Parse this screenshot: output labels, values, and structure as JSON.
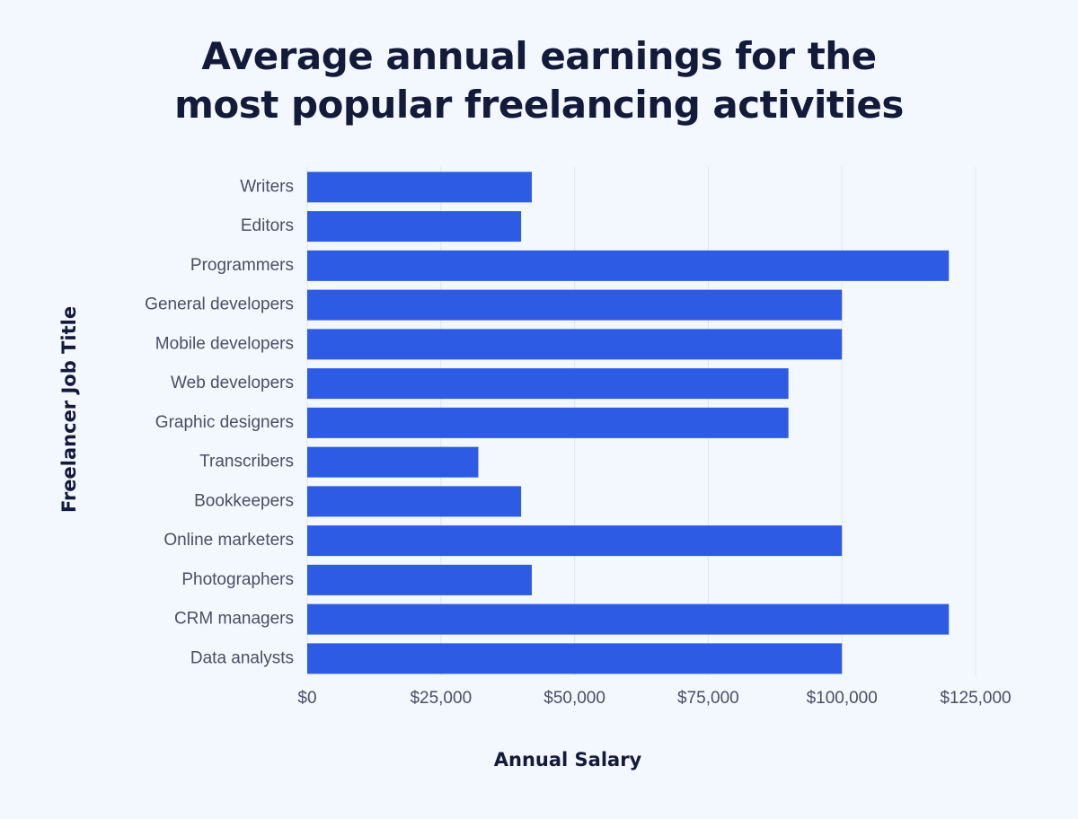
{
  "title_lines": [
    "Average annual earnings for the",
    "most popular freelancing activities"
  ],
  "colors": {
    "bar": "#2d5be3",
    "grid": "#e1e6ef",
    "background": "#f3f7fe",
    "text_dark": "#141a3a",
    "text_muted": "#4a4f63"
  },
  "chart_data": {
    "type": "bar",
    "orientation": "horizontal",
    "title": "Average annual earnings for the most popular freelancing activities",
    "xlabel": "Annual Salary",
    "ylabel": "Freelancer Job Title",
    "categories": [
      "Writers",
      "Editors",
      "Programmers",
      "General developers",
      "Mobile developers",
      "Web developers",
      "Graphic designers",
      "Transcribers",
      "Bookkeepers",
      "Online marketers",
      "Photographers",
      "CRM managers",
      "Data analysts"
    ],
    "values": [
      42000,
      40000,
      120000,
      100000,
      100000,
      90000,
      90000,
      32000,
      40000,
      100000,
      42000,
      120000,
      100000
    ],
    "xlim": [
      0,
      125000
    ],
    "xticks": [
      0,
      25000,
      50000,
      75000,
      100000,
      125000
    ],
    "xtick_labels": [
      "$0",
      "$25,000",
      "$50,000",
      "$75,000",
      "$100,000",
      "$125,000"
    ],
    "grid": true,
    "legend": "none"
  }
}
